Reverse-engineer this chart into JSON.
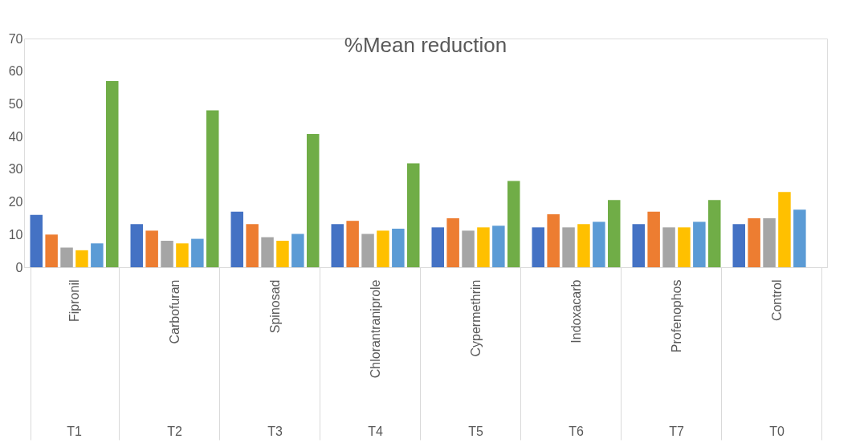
{
  "chart_data": {
    "type": "bar",
    "title": "%Mean reduction",
    "categories": [
      "Fipronil",
      "Carbofuran",
      "Spinosad",
      "Chlorantraniprole",
      "Cypermethrin",
      "Indoxacarb",
      "Profenophos",
      "Control"
    ],
    "series": [
      {
        "color": "#4472c4",
        "values": [
          16,
          13.2,
          17,
          13.2,
          12.2,
          12.2,
          13.2,
          13.2
        ]
      },
      {
        "color": "#ed7d31",
        "values": [
          10,
          11.2,
          13.2,
          14.2,
          15,
          16.2,
          17,
          15
        ]
      },
      {
        "color": "#a5a5a5",
        "values": [
          6,
          8.1,
          9.2,
          10.2,
          11.2,
          12.2,
          12.2,
          15
        ]
      },
      {
        "color": "#ffc000",
        "values": [
          5.2,
          7.3,
          8.1,
          11.2,
          12.2,
          13.2,
          12.2,
          23
        ]
      },
      {
        "color": "#5b9bd5",
        "values": [
          7.3,
          8.7,
          10.2,
          11.8,
          12.7,
          13.9,
          13.9,
          17.6
        ]
      },
      {
        "color": "#70ad47",
        "values": [
          57,
          48,
          40.8,
          31.8,
          26.4,
          20.6,
          20.6,
          null
        ]
      }
    ],
    "annotations": [
      "T1",
      "T2",
      "T3",
      "T4",
      "T5",
      "T6",
      "T7",
      "T0"
    ],
    "ylim": [
      0,
      70
    ],
    "yticks": [
      0,
      10,
      20,
      30,
      40,
      50,
      60,
      70
    ],
    "grid": false,
    "legend": false
  }
}
